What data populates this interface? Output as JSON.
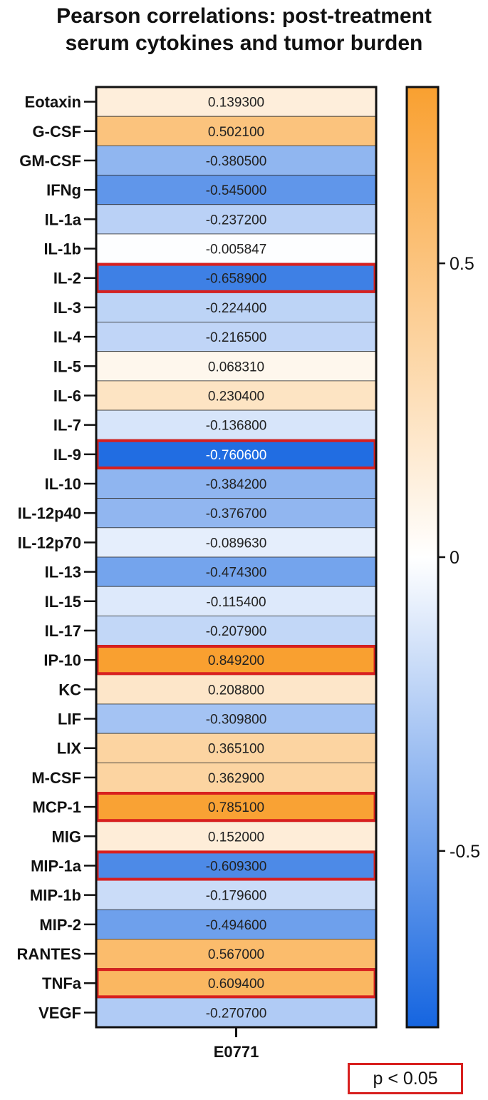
{
  "title_lines": [
    "Pearson correlations: post-treatment",
    "serum cytokines and tumor burden"
  ],
  "legend": {
    "significance_label": "p < 0.05",
    "significance_color": "#d8201f"
  },
  "colors": {
    "negative": "#1565e0",
    "zero": "#ffffff",
    "positive": "#f9a030",
    "highlight": "#d8201f"
  },
  "chart_data": {
    "type": "heatmap",
    "title": "Pearson correlations: post-treatment serum cytokines and tumor burden",
    "columns": [
      "E0771"
    ],
    "rows": [
      "Eotaxin",
      "G-CSF",
      "GM-CSF",
      "IFNg",
      "IL-1a",
      "IL-1b",
      "IL-2",
      "IL-3",
      "IL-4",
      "IL-5",
      "IL-6",
      "IL-7",
      "IL-9",
      "IL-10",
      "IL-12p40",
      "IL-12p70",
      "IL-13",
      "IL-15",
      "IL-17",
      "IP-10",
      "KC",
      "LIF",
      "LIX",
      "M-CSF",
      "MCP-1",
      "MIG",
      "MIP-1a",
      "MIP-1b",
      "MIP-2",
      "RANTES",
      "TNFa",
      "VEGF"
    ],
    "values": [
      0.1393,
      0.5021,
      -0.3805,
      -0.545,
      -0.2372,
      -0.005847,
      -0.6589,
      -0.2244,
      -0.2165,
      0.06831,
      0.2304,
      -0.1368,
      -0.7606,
      -0.3842,
      -0.3767,
      -0.08963,
      -0.4743,
      -0.1154,
      -0.2079,
      0.8492,
      0.2088,
      -0.3098,
      0.3651,
      0.3629,
      0.7851,
      0.152,
      -0.6093,
      -0.1796,
      -0.4946,
      0.567,
      0.6094,
      -0.2707
    ],
    "value_labels": [
      "0.139300",
      "0.502100",
      "-0.380500",
      "-0.545000",
      "-0.237200",
      "-0.005847",
      "-0.658900",
      "-0.224400",
      "-0.216500",
      "0.068310",
      "0.230400",
      "-0.136800",
      "-0.760600",
      "-0.384200",
      "-0.376700",
      "-0.089630",
      "-0.474300",
      "-0.115400",
      "-0.207900",
      "0.849200",
      "0.208800",
      "-0.309800",
      "0.365100",
      "0.362900",
      "0.785100",
      "0.152000",
      "-0.609300",
      "-0.179600",
      "-0.494600",
      "0.567000",
      "0.609400",
      "-0.270700"
    ],
    "significant": [
      "IL-2",
      "IL-9",
      "IP-10",
      "MCP-1",
      "MIP-1a",
      "TNFa"
    ],
    "color_scale": {
      "min": -0.8,
      "max": 0.8,
      "ticks": [
        0.5,
        0,
        -0.5
      ],
      "tick_labels": [
        "0.5",
        "0",
        "-0.5"
      ]
    }
  }
}
